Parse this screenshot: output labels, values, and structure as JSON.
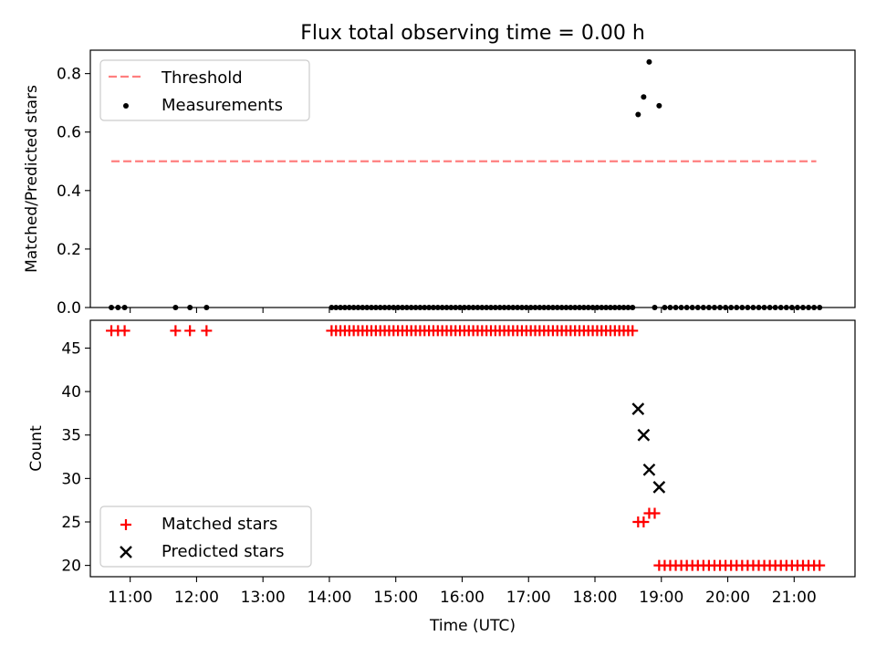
{
  "figure": {
    "title": "Flux total observing time = 0.00 h"
  },
  "chart_data": [
    {
      "type": "scatter",
      "title": "Flux total observing time = 0.00 h",
      "xlabel": "",
      "ylabel": "Matched/Predicted stars",
      "xlim": [
        "10:24",
        "21:55"
      ],
      "ylim": [
        0,
        0.88
      ],
      "yticks": [
        0.0,
        0.2,
        0.4,
        0.6,
        0.8
      ],
      "ytick_labels": [
        "0.0",
        "0.2",
        "0.4",
        "0.6",
        "0.8"
      ],
      "legend": {
        "position": "upper left",
        "entries": [
          "Threshold",
          "Measurements"
        ]
      },
      "series": [
        {
          "name": "Threshold",
          "style": "dashed-line",
          "color": "#ff7f7f",
          "x": [
            "10:43",
            "21:20"
          ],
          "y": [
            0.5,
            0.5
          ]
        },
        {
          "name": "Measurements",
          "style": "dot",
          "color": "#000000",
          "x": [
            "10:43",
            "10:49",
            "10:55",
            "11:41",
            "11:54",
            "12:09",
            "14:02",
            "14:06",
            "14:10",
            "14:14",
            "14:18",
            "14:22",
            "14:26",
            "14:30",
            "14:34",
            "14:38",
            "14:42",
            "14:46",
            "14:50",
            "14:54",
            "14:58",
            "15:02",
            "15:06",
            "15:10",
            "15:14",
            "15:18",
            "15:22",
            "15:26",
            "15:30",
            "15:34",
            "15:38",
            "15:42",
            "15:46",
            "15:50",
            "15:54",
            "15:58",
            "16:02",
            "16:06",
            "16:10",
            "16:14",
            "16:18",
            "16:22",
            "16:26",
            "16:30",
            "16:34",
            "16:38",
            "16:42",
            "16:46",
            "16:50",
            "16:54",
            "16:58",
            "17:02",
            "17:06",
            "17:10",
            "17:14",
            "17:18",
            "17:22",
            "17:26",
            "17:30",
            "17:34",
            "17:38",
            "17:42",
            "17:46",
            "17:50",
            "17:54",
            "17:58",
            "18:02",
            "18:06",
            "18:10",
            "18:14",
            "18:18",
            "18:22",
            "18:26",
            "18:30",
            "18:34",
            "18:39",
            "18:44",
            "18:49",
            "18:58",
            "18:54",
            "19:03",
            "19:08",
            "19:13",
            "19:18",
            "19:23",
            "19:28",
            "19:33",
            "19:38",
            "19:43",
            "19:48",
            "19:53",
            "19:58",
            "20:03",
            "20:08",
            "20:13",
            "20:18",
            "20:23",
            "20:28",
            "20:33",
            "20:38",
            "20:43",
            "20:48",
            "20:53",
            "20:58",
            "21:03",
            "21:08",
            "21:13",
            "21:18",
            "21:23"
          ],
          "y": [
            0,
            0,
            0,
            0,
            0,
            0,
            0,
            0,
            0,
            0,
            0,
            0,
            0,
            0,
            0,
            0,
            0,
            0,
            0,
            0,
            0,
            0,
            0,
            0,
            0,
            0,
            0,
            0,
            0,
            0,
            0,
            0,
            0,
            0,
            0,
            0,
            0,
            0,
            0,
            0,
            0,
            0,
            0,
            0,
            0,
            0,
            0,
            0,
            0,
            0,
            0,
            0,
            0,
            0,
            0,
            0,
            0,
            0,
            0,
            0,
            0,
            0,
            0,
            0,
            0,
            0,
            0,
            0,
            0,
            0,
            0,
            0,
            0,
            0,
            0,
            0.66,
            0.72,
            0.84,
            0.69,
            0,
            0,
            0,
            0,
            0,
            0,
            0,
            0,
            0,
            0,
            0,
            0,
            0,
            0,
            0,
            0,
            0,
            0,
            0,
            0,
            0,
            0,
            0,
            0,
            0,
            0,
            0,
            0,
            0,
            0
          ]
        }
      ]
    },
    {
      "type": "scatter",
      "title": "",
      "xlabel": "Time (UTC)",
      "ylabel": "Count",
      "xlim": [
        "10:24",
        "21:55"
      ],
      "ylim": [
        18.7,
        48.2
      ],
      "yticks": [
        20,
        25,
        30,
        35,
        40,
        45
      ],
      "ytick_labels": [
        "20",
        "25",
        "30",
        "35",
        "40",
        "45"
      ],
      "xticks": [
        "11:00",
        "12:00",
        "13:00",
        "14:00",
        "15:00",
        "16:00",
        "17:00",
        "18:00",
        "19:00",
        "20:00",
        "21:00"
      ],
      "legend": {
        "position": "lower left",
        "entries": [
          "Matched stars",
          "Predicted stars"
        ]
      },
      "series": [
        {
          "name": "Matched stars",
          "style": "plus",
          "color": "#ff0000",
          "x": [
            "10:43",
            "10:49",
            "10:55",
            "11:41",
            "11:54",
            "12:09",
            "14:02",
            "14:06",
            "14:10",
            "14:14",
            "14:18",
            "14:22",
            "14:26",
            "14:30",
            "14:34",
            "14:38",
            "14:42",
            "14:46",
            "14:50",
            "14:54",
            "14:58",
            "15:02",
            "15:06",
            "15:10",
            "15:14",
            "15:18",
            "15:22",
            "15:26",
            "15:30",
            "15:34",
            "15:38",
            "15:42",
            "15:46",
            "15:50",
            "15:54",
            "15:58",
            "16:02",
            "16:06",
            "16:10",
            "16:14",
            "16:18",
            "16:22",
            "16:26",
            "16:30",
            "16:34",
            "16:38",
            "16:42",
            "16:46",
            "16:50",
            "16:54",
            "16:58",
            "17:02",
            "17:06",
            "17:10",
            "17:14",
            "17:18",
            "17:22",
            "17:26",
            "17:30",
            "17:34",
            "17:38",
            "17:42",
            "17:46",
            "17:50",
            "17:54",
            "17:58",
            "18:02",
            "18:06",
            "18:10",
            "18:14",
            "18:18",
            "18:22",
            "18:26",
            "18:30",
            "18:34",
            "18:39",
            "18:44",
            "18:49",
            "18:54",
            "18:58",
            "19:03",
            "19:08",
            "19:13",
            "19:18",
            "19:23",
            "19:28",
            "19:33",
            "19:38",
            "19:43",
            "19:48",
            "19:53",
            "19:58",
            "20:03",
            "20:08",
            "20:13",
            "20:18",
            "20:23",
            "20:28",
            "20:33",
            "20:38",
            "20:43",
            "20:48",
            "20:53",
            "20:58",
            "21:03",
            "21:08",
            "21:13",
            "21:18",
            "21:23"
          ],
          "y": [
            47,
            47,
            47,
            47,
            47,
            47,
            47,
            47,
            47,
            47,
            47,
            47,
            47,
            47,
            47,
            47,
            47,
            47,
            47,
            47,
            47,
            47,
            47,
            47,
            47,
            47,
            47,
            47,
            47,
            47,
            47,
            47,
            47,
            47,
            47,
            47,
            47,
            47,
            47,
            47,
            47,
            47,
            47,
            47,
            47,
            47,
            47,
            47,
            47,
            47,
            47,
            47,
            47,
            47,
            47,
            47,
            47,
            47,
            47,
            47,
            47,
            47,
            47,
            47,
            47,
            47,
            47,
            47,
            47,
            47,
            47,
            47,
            47,
            47,
            47,
            25,
            25,
            26,
            26,
            20,
            20,
            20,
            20,
            20,
            20,
            20,
            20,
            20,
            20,
            20,
            20,
            20,
            20,
            20,
            20,
            20,
            20,
            20,
            20,
            20,
            20,
            20,
            20,
            20,
            20,
            20,
            20,
            20,
            20
          ]
        },
        {
          "name": "Predicted stars",
          "style": "x",
          "color": "#000000",
          "x": [
            "18:39",
            "18:44",
            "18:49",
            "18:58"
          ],
          "y": [
            38,
            35,
            31,
            29
          ]
        }
      ]
    }
  ]
}
